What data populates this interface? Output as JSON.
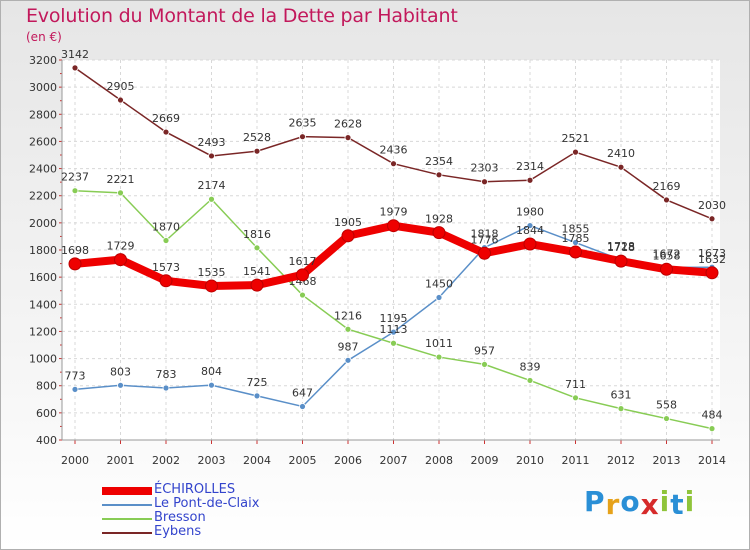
{
  "header": {
    "title": "Evolution du Montant de la Dette par Habitant",
    "unit": "(en €)"
  },
  "logo": {
    "text": "Proxiti",
    "letters": [
      "P",
      "r",
      "o",
      "x",
      "i",
      "t",
      "i"
    ],
    "colors": [
      "#2a8fd6",
      "#e6a21a",
      "#2a8fd6",
      "#d62a2a",
      "#8fc43a",
      "#2a8fd6",
      "#8fc43a"
    ]
  },
  "chart_data": {
    "type": "line",
    "title": "Evolution du Montant de la Dette par Habitant",
    "ylabel": "(en €)",
    "xlabel": "",
    "x": [
      2000,
      2001,
      2002,
      2003,
      2004,
      2005,
      2006,
      2007,
      2008,
      2009,
      2010,
      2011,
      2012,
      2013,
      2014
    ],
    "ylim": [
      400,
      3200
    ],
    "ytick_step": 200,
    "grid": true,
    "legend_position": "bottom-left",
    "series": [
      {
        "name": "ÉCHIROLLES",
        "color": "#ee0000",
        "emphasis": true,
        "values": [
          1698,
          1729,
          1573,
          1535,
          1541,
          1617,
          1905,
          1979,
          1928,
          1776,
          1844,
          1785,
          1718,
          1658,
          1632
        ]
      },
      {
        "name": "Le Pont-de-Claix",
        "color": "#5a8fc8",
        "emphasis": false,
        "values": [
          773,
          803,
          783,
          804,
          725,
          647,
          987,
          1195,
          1450,
          1818,
          1980,
          1855,
          1728,
          1672,
          1673
        ]
      },
      {
        "name": "Bresson",
        "color": "#88cc55",
        "emphasis": false,
        "values": [
          2237,
          2221,
          1870,
          2174,
          1816,
          1468,
          1216,
          1113,
          1011,
          957,
          839,
          711,
          631,
          558,
          484
        ]
      },
      {
        "name": "Eybens",
        "color": "#7a2626",
        "emphasis": false,
        "values": [
          3142,
          2905,
          2669,
          2493,
          2528,
          2635,
          2628,
          2436,
          2354,
          2303,
          2314,
          2521,
          2410,
          2169,
          2030
        ]
      }
    ]
  }
}
